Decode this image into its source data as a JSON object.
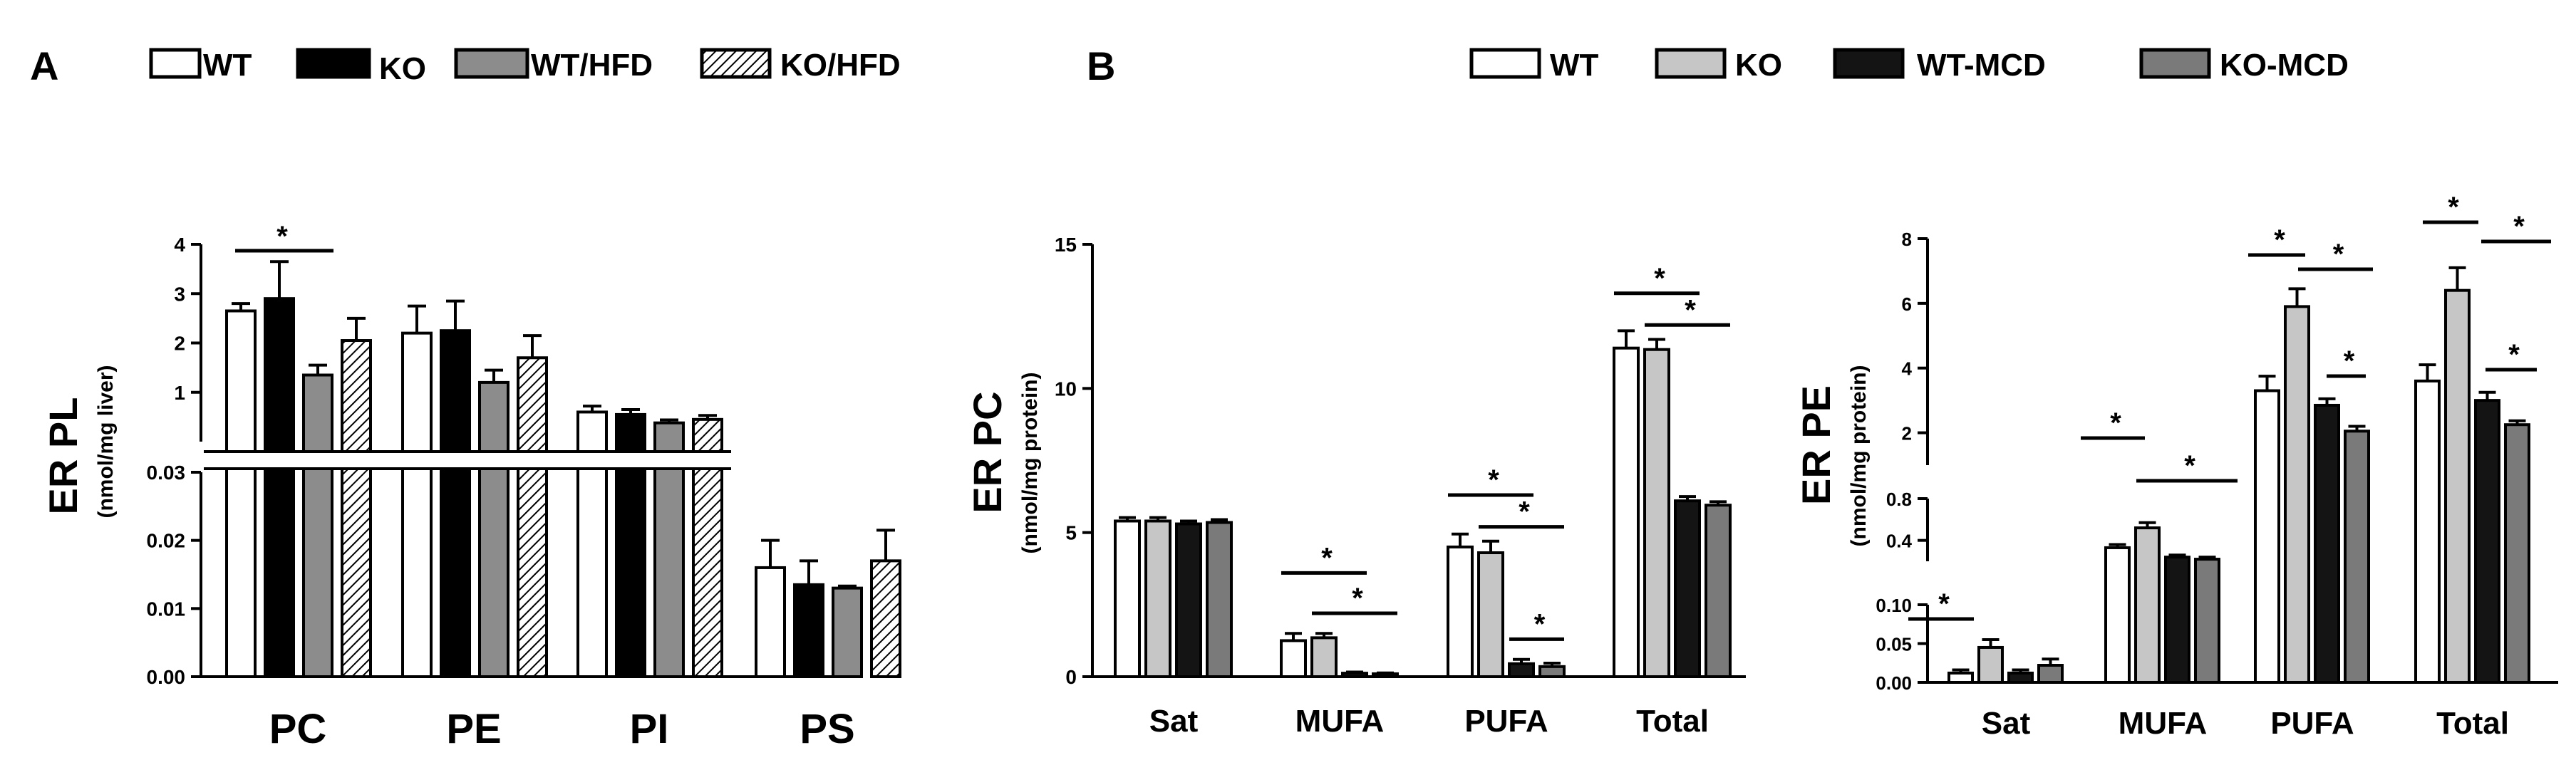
{
  "colors": {
    "white": "#ffffff",
    "black": "#000000",
    "gray": "#8c8c8c",
    "lightgray": "#c6c6c6",
    "midgray": "#7a7a7a",
    "dark": "#141414"
  },
  "panel_labels": {
    "a": "A",
    "b": "B"
  },
  "chart_data": [
    {
      "id": "A",
      "type": "bar",
      "ylabel": "ER PL",
      "ylabel_sub": "(nmol/mg liver)",
      "categories": [
        "PC",
        "PE",
        "PI",
        "PS"
      ],
      "legend": [
        {
          "label": "WT",
          "style": "white"
        },
        {
          "label": "KO",
          "style": "black"
        },
        {
          "label": "WT/HFD",
          "style": "gray"
        },
        {
          "label": "KO/HFD",
          "style": "hatch"
        }
      ],
      "axis_break": true,
      "lower_range": [
        0,
        0.03
      ],
      "lower_ticks": [
        "0.00",
        "0.01",
        "0.02",
        "0.03"
      ],
      "upper_range": [
        0,
        4
      ],
      "upper_ticks": [
        "1",
        "2",
        "3",
        "4"
      ],
      "series": [
        {
          "name": "WT",
          "values": [
            2.65,
            2.2,
            0.6,
            0.016
          ],
          "errors": [
            0.15,
            0.55,
            0.12,
            0.004
          ]
        },
        {
          "name": "KO",
          "values": [
            2.9,
            2.25,
            0.55,
            0.0135
          ],
          "errors": [
            0.75,
            0.6,
            0.1,
            0.0035
          ]
        },
        {
          "name": "WT/HFD",
          "values": [
            1.35,
            1.2,
            0.38,
            0.013
          ],
          "errors": [
            0.2,
            0.25,
            0.06,
            0.0003
          ]
        },
        {
          "name": "KO/HFD",
          "values": [
            2.05,
            1.7,
            0.45,
            0.017
          ],
          "errors": [
            0.45,
            0.45,
            0.08,
            0.0045
          ]
        }
      ],
      "significance": [
        {
          "label": "*",
          "category": 0,
          "from": 0,
          "to": 2
        }
      ]
    },
    {
      "id": "B1",
      "type": "bar",
      "ylabel": "ER PC",
      "ylabel_sub": "(nmol/mg protein)",
      "categories": [
        "Sat",
        "MUFA",
        "PUFA",
        "Total"
      ],
      "ylim": [
        0,
        15
      ],
      "ticks": [
        "0",
        "5",
        "10",
        "15"
      ],
      "series": [
        {
          "name": "WT",
          "values": [
            5.4,
            1.25,
            4.5,
            11.4
          ],
          "errors": [
            0.12,
            0.25,
            0.45,
            0.6
          ]
        },
        {
          "name": "KO",
          "values": [
            5.4,
            1.35,
            4.3,
            11.35
          ],
          "errors": [
            0.12,
            0.15,
            0.4,
            0.35
          ]
        },
        {
          "name": "WT-MCD",
          "values": [
            5.3,
            0.12,
            0.45,
            6.1
          ],
          "errors": [
            0.1,
            0.04,
            0.15,
            0.15
          ]
        },
        {
          "name": "KO-MCD",
          "values": [
            5.35,
            0.1,
            0.35,
            5.95
          ],
          "errors": [
            0.1,
            0.03,
            0.12,
            0.12
          ]
        }
      ],
      "significance": [
        {
          "label": "*",
          "category": 1,
          "from": 0,
          "to": 2,
          "y": 3.6
        },
        {
          "label": "*",
          "category": 1,
          "from": 1,
          "to": 3,
          "y": 2.2
        },
        {
          "label": "*",
          "category": 2,
          "from": 0,
          "to": 2,
          "y": 6.3
        },
        {
          "label": "*",
          "category": 2,
          "from": 1,
          "to": 3,
          "y": 5.2
        },
        {
          "label": "*",
          "category": 2,
          "from": 2,
          "to": 3,
          "y": 1.3
        },
        {
          "label": "*",
          "category": 3,
          "from": 0,
          "to": 2,
          "y": 13.3
        },
        {
          "label": "*",
          "category": 3,
          "from": 1,
          "to": 3,
          "y": 12.2
        }
      ]
    },
    {
      "id": "B2",
      "type": "bar",
      "ylabel": "ER PE",
      "ylabel_sub": "(nmol/mg protein)",
      "categories": [
        "Sat",
        "MUFA",
        "PUFA",
        "Total"
      ],
      "axis_break": true,
      "lower_ticks": [
        "0.00",
        "0.05",
        "0.10"
      ],
      "mid_ticks": [
        "0.4",
        "0.8"
      ],
      "upper_ticks": [
        "2",
        "4",
        "6",
        "8"
      ],
      "series": [
        {
          "name": "WT",
          "values": [
            0.012,
            0.33,
            3.3,
            3.6
          ],
          "errors": [
            0.004,
            0.03,
            0.45,
            0.5
          ]
        },
        {
          "name": "KO",
          "values": [
            0.045,
            0.52,
            5.9,
            6.4
          ],
          "errors": [
            0.01,
            0.05,
            0.55,
            0.7
          ]
        },
        {
          "name": "WT-MCD",
          "values": [
            0.012,
            0.24,
            2.85,
            3.0
          ],
          "errors": [
            0.004,
            0.02,
            0.2,
            0.25
          ]
        },
        {
          "name": "KO-MCD",
          "values": [
            0.022,
            0.22,
            2.05,
            2.25
          ],
          "errors": [
            0.008,
            0.02,
            0.15,
            0.12
          ]
        }
      ],
      "significance": [
        {
          "label": "*",
          "category": 0,
          "from": 0,
          "to": 1
        },
        {
          "label": "*",
          "category": 1,
          "from": 0,
          "to": 1
        },
        {
          "label": "*",
          "category": 1,
          "from": 1,
          "to": 3
        },
        {
          "label": "*",
          "category": 2,
          "from": 0,
          "to": 1
        },
        {
          "label": "*",
          "category": 2,
          "from": 1,
          "to": 3
        },
        {
          "label": "*",
          "category": 2,
          "from": 2,
          "to": 3
        },
        {
          "label": "*",
          "category": 3,
          "from": 0,
          "to": 1
        },
        {
          "label": "*",
          "category": 3,
          "from": 1,
          "to": 3
        },
        {
          "label": "*",
          "category": 3,
          "from": 2,
          "to": 3
        }
      ]
    }
  ],
  "legend_b": [
    {
      "label": "WT",
      "style": "white"
    },
    {
      "label": "KO",
      "style": "lightgray"
    },
    {
      "label": "WT-MCD",
      "style": "dark"
    },
    {
      "label": "KO-MCD",
      "style": "midgray"
    }
  ]
}
